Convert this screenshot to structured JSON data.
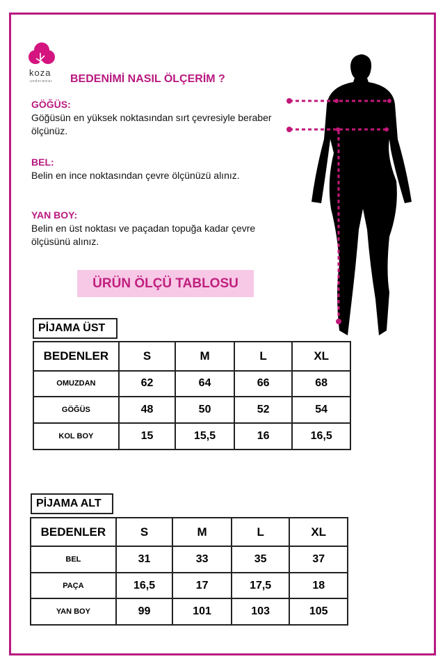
{
  "brand": {
    "name": "koza",
    "tagline": "underwear",
    "color": "#d4147f"
  },
  "title": "BEDENİMİ NASIL ÖLÇERİM ?",
  "sections": [
    {
      "heading": "GÖĞÜS:",
      "text": "Göğüsün en yüksek noktasından sırt çevresiyle beraber ölçünüz."
    },
    {
      "heading": "BEL:",
      "text": "Belin en ince noktasından çevre ölçünüzü alınız."
    },
    {
      "heading": "YAN BOY:",
      "text": "Belin en üst noktası ve paçadan topuğa kadar çevre ölçüsünü alınız."
    }
  ],
  "banner": "ÜRÜN ÖLÇÜ TABLOSU",
  "accent": "#b8197f",
  "tables": [
    {
      "label": "PİJAMA ÜST",
      "header": [
        "BEDENLER",
        "S",
        "M",
        "L",
        "XL"
      ],
      "rows": [
        [
          "OMUZDAN",
          "62",
          "64",
          "66",
          "68"
        ],
        [
          "GÖĞÜS",
          "48",
          "50",
          "52",
          "54"
        ],
        [
          "KOL BOY",
          "15",
          "15,5",
          "16",
          "16,5"
        ]
      ]
    },
    {
      "label": "PİJAMA ALT",
      "header": [
        "BEDENLER",
        "S",
        "M",
        "L",
        "XL"
      ],
      "rows": [
        [
          "BEL",
          "31",
          "33",
          "35",
          "37"
        ],
        [
          "PAÇA",
          "16,5",
          "17",
          "17,5",
          "18"
        ],
        [
          "YAN BOY",
          "99",
          "101",
          "103",
          "105"
        ]
      ]
    }
  ]
}
